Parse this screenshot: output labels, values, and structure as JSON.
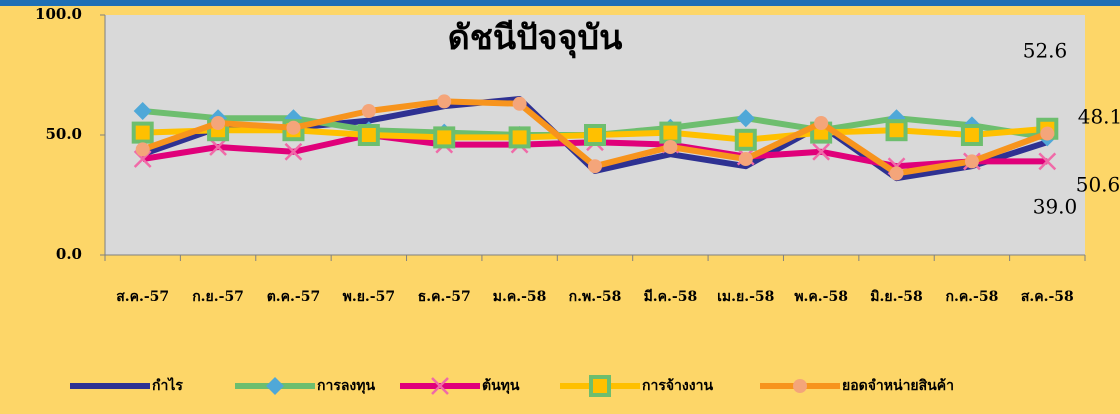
{
  "chart_data": {
    "type": "line",
    "title": "ดัชนีปัจจุบัน",
    "categories": [
      "ส.ค.-57",
      "ก.ย.-57",
      "ต.ค.-57",
      "พ.ย.-57",
      "ธ.ค.-57",
      "ม.ค.-58",
      "ก.พ.-58",
      "มี.ค.-58",
      "เม.ย.-58",
      "พ.ค.-58",
      "มิ.ย.-58",
      "ก.ค.-58",
      "ส.ค.-58"
    ],
    "series": [
      {
        "name": "กำไร",
        "color": "#2E3192",
        "marker": "none",
        "marker_color": "#2E3192",
        "values": [
          42,
          53,
          53,
          56,
          62,
          65,
          35,
          42,
          37,
          54,
          32,
          37,
          47
        ]
      },
      {
        "name": "การลงทุน",
        "color": "#6DBE6E",
        "marker": "diamond",
        "marker_color": "#4FA8D8",
        "values": [
          60,
          57,
          57,
          52,
          51,
          50,
          50,
          53,
          57,
          52,
          57,
          54,
          49
        ]
      },
      {
        "name": "ต้นทุน",
        "color": "#E0007A",
        "marker": "x",
        "marker_color": "#F06AA8",
        "values": [
          40,
          45,
          43,
          50,
          46,
          46,
          47,
          46,
          41,
          43,
          37,
          39,
          39
        ]
      },
      {
        "name": "การจ้างงาน",
        "color": "#FFC000",
        "marker": "square",
        "marker_color": "#6DBE6E",
        "values": [
          51,
          52,
          52,
          50,
          49,
          49,
          50,
          51,
          48,
          51,
          52,
          50,
          52.6
        ]
      },
      {
        "name": "ยอดจำหน่ายสินค้า",
        "color": "#F7941D",
        "marker": "circle",
        "marker_color": "#F4A57A",
        "values": [
          44,
          55,
          53,
          60,
          64,
          63,
          37,
          45,
          40,
          55,
          34,
          39,
          50.6
        ]
      }
    ],
    "annotations": [
      "52.6",
      "48.1",
      "50.6",
      "39.0"
    ],
    "ylim": [
      0,
      100
    ],
    "yticks": [
      {
        "value": 0,
        "label": "0.0"
      },
      {
        "value": 50,
        "label": "50.0"
      },
      {
        "value": 100,
        "label": "100.0"
      }
    ],
    "plot_color": "#D9D9D9",
    "background": "#FDD668",
    "grid": false,
    "legend": "bottom"
  }
}
